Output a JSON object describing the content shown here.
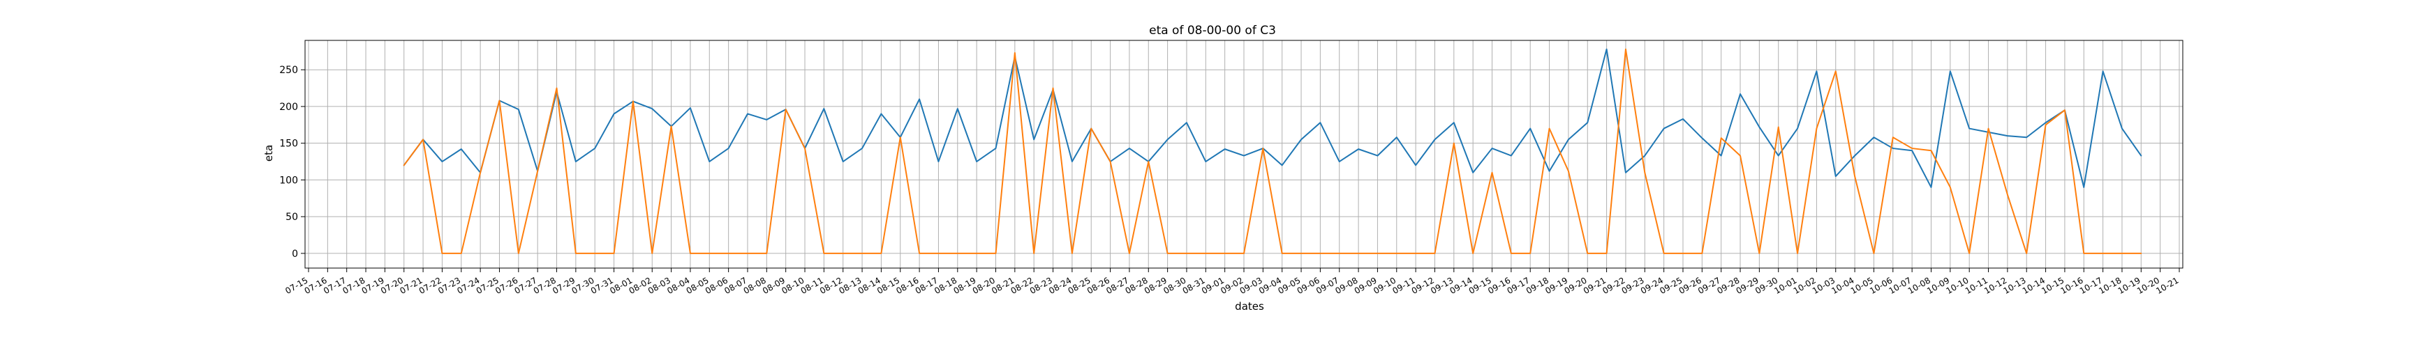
{
  "chart_data": {
    "type": "line",
    "title": "eta of 08-00-00 of C3",
    "xlabel": "dates",
    "ylabel": "eta",
    "ylim": [
      -20,
      290
    ],
    "yticks": [
      0,
      50,
      100,
      150,
      200,
      250
    ],
    "grid": true,
    "x": [
      "07-15",
      "07-16",
      "07-17",
      "07-18",
      "07-19",
      "07-20",
      "07-21",
      "07-22",
      "07-23",
      "07-24",
      "07-25",
      "07-26",
      "07-27",
      "07-28",
      "07-29",
      "07-30",
      "07-31",
      "08-01",
      "08-02",
      "08-03",
      "08-04",
      "08-05",
      "08-06",
      "08-07",
      "08-08",
      "08-09",
      "08-10",
      "08-11",
      "08-12",
      "08-13",
      "08-14",
      "08-15",
      "08-16",
      "08-17",
      "08-18",
      "08-19",
      "08-20",
      "08-21",
      "08-22",
      "08-23",
      "08-24",
      "08-25",
      "08-26",
      "08-27",
      "08-28",
      "08-29",
      "08-30",
      "08-31",
      "09-01",
      "09-02",
      "09-03",
      "09-04",
      "09-05",
      "09-06",
      "09-07",
      "09-08",
      "09-09",
      "09-10",
      "09-11",
      "09-12",
      "09-13",
      "09-14",
      "09-15",
      "09-16",
      "09-17",
      "09-18",
      "09-19",
      "09-20",
      "09-21",
      "09-22",
      "09-23",
      "09-24",
      "09-25",
      "09-26",
      "09-27",
      "09-28",
      "09-29",
      "09-30",
      "10-01",
      "10-02",
      "10-03",
      "10-04",
      "10-05",
      "10-06",
      "10-07",
      "10-08",
      "10-09",
      "10-10",
      "10-11",
      "10-12",
      "10-13",
      "10-14",
      "10-15",
      "10-16",
      "10-17",
      "10-18",
      "10-19",
      "10-20",
      "10-21"
    ],
    "series": [
      {
        "color": "#1f77b4",
        "values": [
          null,
          null,
          null,
          null,
          null,
          120,
          155,
          125,
          142,
          110,
          208,
          196,
          112,
          220,
          125,
          143,
          190,
          207,
          197,
          173,
          198,
          125,
          143,
          190,
          182,
          196,
          143,
          197,
          125,
          143,
          190,
          158,
          210,
          125,
          197,
          125,
          143,
          268,
          155,
          223,
          125,
          170,
          125,
          143,
          125,
          155,
          178,
          125,
          142,
          133,
          143,
          120,
          155,
          178,
          125,
          142,
          133,
          158,
          120,
          155,
          178,
          110,
          143,
          133,
          170,
          112,
          155,
          178,
          278,
          110,
          133,
          170,
          183,
          157,
          133,
          217,
          172,
          133,
          170,
          248,
          105,
          133,
          158,
          143,
          140,
          90,
          248,
          170,
          165,
          160,
          158,
          178,
          195,
          90,
          248,
          170,
          133,
          null,
          null
        ]
      },
      {
        "color": "#ff7f0e",
        "values": [
          null,
          null,
          null,
          null,
          null,
          120,
          155,
          0,
          0,
          110,
          208,
          0,
          112,
          225,
          0,
          0,
          0,
          207,
          0,
          173,
          0,
          0,
          0,
          0,
          0,
          196,
          143,
          0,
          0,
          0,
          0,
          158,
          0,
          0,
          0,
          0,
          0,
          273,
          0,
          225,
          0,
          170,
          125,
          0,
          125,
          0,
          0,
          0,
          0,
          0,
          143,
          0,
          0,
          0,
          0,
          0,
          0,
          0,
          0,
          0,
          150,
          0,
          110,
          0,
          0,
          170,
          112,
          0,
          0,
          278,
          110,
          0,
          0,
          0,
          157,
          133,
          0,
          172,
          0,
          170,
          248,
          105,
          0,
          158,
          143,
          140,
          90,
          0,
          170,
          80,
          0,
          175,
          195,
          0,
          0,
          0,
          0,
          null,
          null
        ]
      }
    ]
  }
}
